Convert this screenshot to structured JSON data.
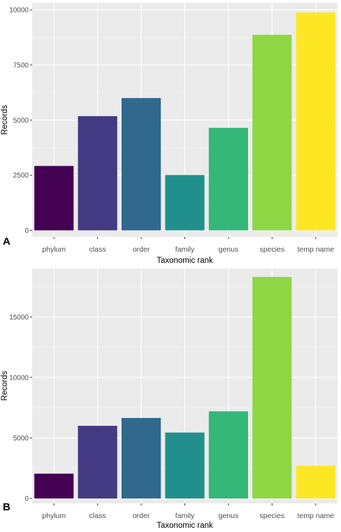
{
  "chart_data": [
    {
      "type": "bar",
      "panel_label": "A",
      "title": "",
      "xlabel": "Taxonomic rank",
      "ylabel": "Records",
      "categories": [
        "phylum",
        "class",
        "order",
        "family",
        "genus",
        "species",
        "temp name"
      ],
      "values": [
        2920,
        5180,
        6000,
        2510,
        4650,
        8870,
        9880
      ],
      "ylim": [
        -300,
        10320
      ],
      "yticks": [
        0,
        2500,
        5000,
        7500,
        10000
      ],
      "ytick_labels": [
        "0",
        "2500",
        "5000",
        "7500",
        "10000"
      ],
      "colors": [
        "#440154",
        "#443A83",
        "#31688E",
        "#21908C",
        "#35B779",
        "#8FD744",
        "#FDE725"
      ],
      "grid": true,
      "legend": "none",
      "background": "#EBEBEB"
    },
    {
      "type": "bar",
      "panel_label": "B",
      "title": "",
      "xlabel": "Taxonomic rank",
      "ylabel": "Records",
      "categories": [
        "phylum",
        "class",
        "order",
        "family",
        "genus",
        "species",
        "temp name"
      ],
      "values": [
        2050,
        6000,
        6650,
        5450,
        7200,
        18300,
        2700
      ],
      "ylim": [
        -400,
        19000
      ],
      "yticks": [
        0,
        5000,
        10000,
        15000
      ],
      "ytick_labels": [
        "0",
        "5000",
        "10000",
        "15000"
      ],
      "colors": [
        "#440154",
        "#443A83",
        "#31688E",
        "#21908C",
        "#35B779",
        "#8FD744",
        "#FDE725"
      ],
      "grid": true,
      "legend": "none",
      "background": "#EBEBEB"
    }
  ]
}
